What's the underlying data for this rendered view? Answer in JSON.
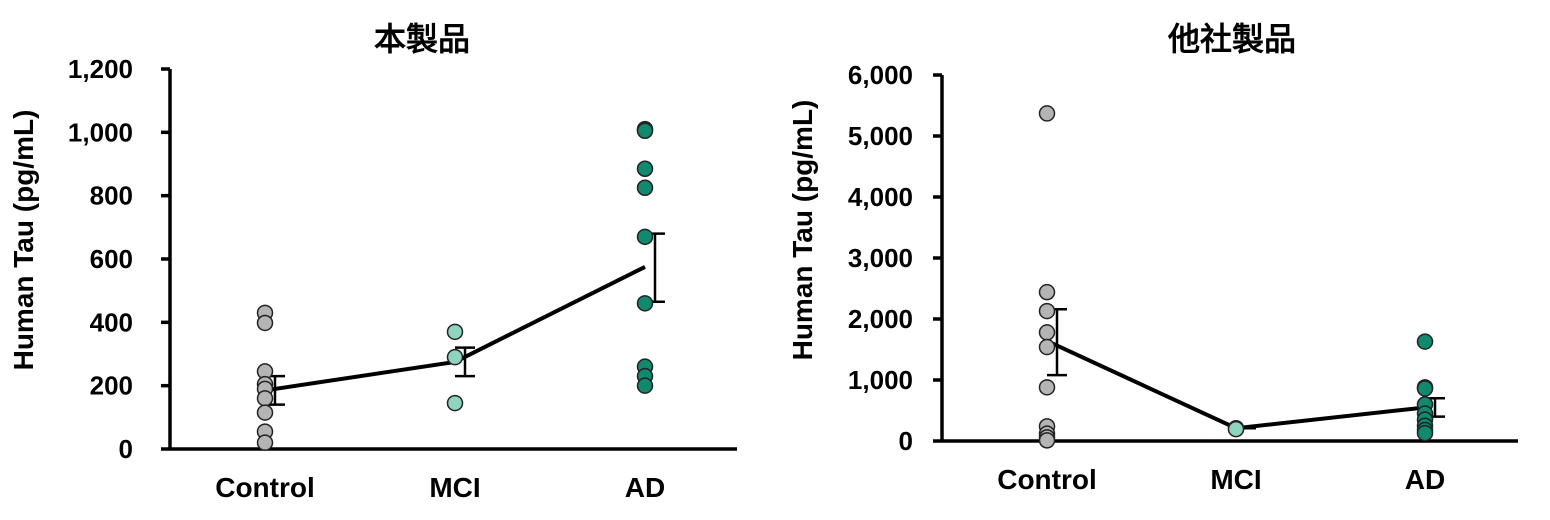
{
  "chart_data": [
    {
      "type": "scatter",
      "title": "本製品",
      "ylabel": "Human Tau (pg/mL)",
      "xlabel": "",
      "ylim": [
        0,
        1200
      ],
      "yticks": [
        "0",
        "200",
        "400",
        "600",
        "800",
        "1,000",
        "1,200"
      ],
      "ytick_values": [
        0,
        200,
        400,
        600,
        800,
        1000,
        1200
      ],
      "categories": [
        "Control",
        "MCI",
        "AD"
      ],
      "colors": [
        "#b4b4b4",
        "#8fd3c1",
        "#10896e"
      ],
      "points": [
        [
          430,
          398,
          245,
          205,
          190,
          160,
          115,
          55,
          20
        ],
        [
          370,
          290,
          145
        ],
        [
          1010,
          1005,
          885,
          825,
          670,
          460,
          260,
          230,
          200
        ]
      ],
      "mean": [
        185,
        275,
        575
      ],
      "error": [
        [
          140,
          230
        ],
        [
          230,
          320
        ],
        [
          465,
          680
        ]
      ]
    },
    {
      "type": "scatter",
      "title": "他社製品",
      "ylabel": "Human Tau (pg/mL)",
      "xlabel": "",
      "ylim": [
        0,
        6000
      ],
      "yticks": [
        "0",
        "1,000",
        "2,000",
        "3,000",
        "4,000",
        "5,000",
        "6,000"
      ],
      "ytick_values": [
        0,
        1000,
        2000,
        3000,
        4000,
        5000,
        6000
      ],
      "categories": [
        "Control",
        "MCI",
        "AD"
      ],
      "colors": [
        "#b4b4b4",
        "#8fd3c1",
        "#10896e"
      ],
      "points": [
        [
          5370,
          2440,
          2130,
          1780,
          1540,
          880,
          240,
          120,
          60,
          10
        ],
        [
          210,
          195
        ],
        [
          1630,
          880,
          860,
          600,
          450,
          350,
          250,
          180,
          130
        ]
      ],
      "mean": [
        1640,
        210,
        550
      ],
      "error": [
        [
          1080,
          2160
        ],
        [
          210,
          210
        ],
        [
          400,
          700
        ]
      ]
    }
  ]
}
